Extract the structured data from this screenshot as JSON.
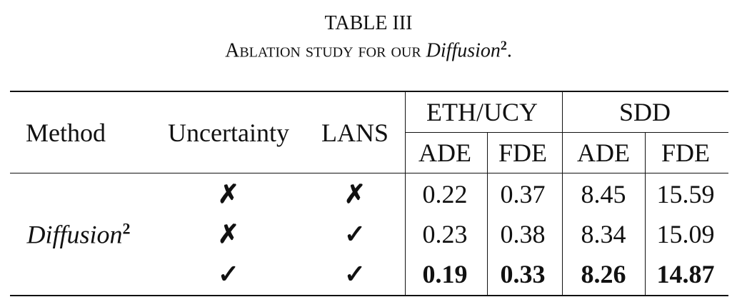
{
  "caption": {
    "label": "TABLE III",
    "text": "Ablation study for our",
    "method": "Diffusion",
    "sup": "2",
    "end": "."
  },
  "table": {
    "headers": {
      "method": "Method",
      "uncertainty": "Uncertainty",
      "lans": "LANS",
      "groups": [
        "ETH/UCY",
        "SDD"
      ],
      "metrics": [
        "ADE",
        "FDE",
        "ADE",
        "FDE"
      ]
    },
    "method": {
      "name": "Diffusion",
      "sup": "2"
    },
    "rows": [
      {
        "uncertainty": "✗",
        "lans": "✗",
        "values": [
          "0.22",
          "0.37",
          "8.45",
          "15.59"
        ],
        "bold": false
      },
      {
        "uncertainty": "✗",
        "lans": "✓",
        "values": [
          "0.23",
          "0.38",
          "8.34",
          "15.09"
        ],
        "bold": false
      },
      {
        "uncertainty": "✓",
        "lans": "✓",
        "values": [
          "0.19",
          "0.33",
          "8.26",
          "14.87"
        ],
        "bold": true
      }
    ]
  }
}
